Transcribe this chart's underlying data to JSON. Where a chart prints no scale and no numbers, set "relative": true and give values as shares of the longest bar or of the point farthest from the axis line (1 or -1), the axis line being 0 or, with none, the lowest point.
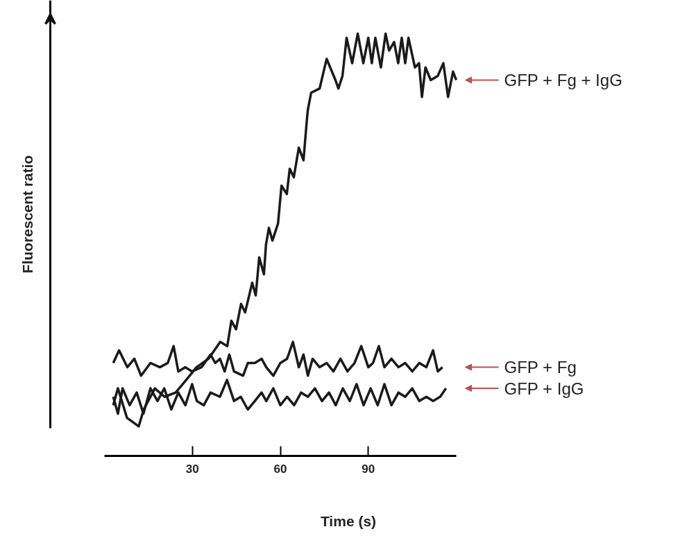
{
  "chart_data": {
    "type": "line",
    "relative": true,
    "xlabel": "Time (s)",
    "ylabel": "Fluorescent ratio",
    "xlim": [
      0,
      120
    ],
    "xticks": [
      30,
      60,
      90
    ],
    "grid": false,
    "marker": "none",
    "line_style": "solid",
    "tick_labels": "x",
    "series": [
      {
        "name": "GFP + Fg + IgG",
        "color": "#1a1a1a",
        "x": [
          3.0,
          4.6,
          7.7,
          11.7,
          13.4,
          17.2,
          20.5,
          24.3,
          27.9,
          31.4,
          35.5,
          39.5,
          41.9,
          43.3,
          44.9,
          46.6,
          48.0,
          50.4,
          51.6,
          52.8,
          54.4,
          55.1,
          56.1,
          57.3,
          59.2,
          60.4,
          62.2,
          63.2,
          64.6,
          66.3,
          67.9,
          69.1,
          69.4,
          70.5,
          73.4,
          75.1,
          75.8,
          77.0,
          78.8,
          79.8,
          81.2,
          82.6,
          84.5,
          86.4,
          88.3,
          90.0,
          91.2,
          92.4,
          94.3,
          95.9,
          97.1,
          98.8,
          100.2,
          101.4,
          102.6,
          103.7,
          105.9,
          107.3,
          108.3,
          109.5,
          111.3,
          113.7,
          115.6,
          117.2,
          118.9,
          120
        ],
        "values": [
          0.12,
          0.16,
          0.09,
          0.07,
          0.11,
          0.16,
          0.14,
          0.15,
          0.18,
          0.21,
          0.23,
          0.27,
          0.26,
          0.32,
          0.3,
          0.36,
          0.34,
          0.41,
          0.38,
          0.47,
          0.43,
          0.5,
          0.54,
          0.51,
          0.55,
          0.64,
          0.62,
          0.68,
          0.66,
          0.73,
          0.7,
          0.8,
          0.82,
          0.86,
          0.87,
          0.92,
          0.94,
          0.92,
          0.89,
          0.87,
          0.9,
          0.99,
          0.93,
          1.0,
          0.93,
          0.99,
          0.93,
          0.99,
          0.92,
          1.0,
          0.96,
          0.98,
          0.93,
          0.99,
          0.93,
          0.99,
          0.92,
          0.93,
          0.85,
          0.92,
          0.89,
          0.9,
          0.93,
          0.85,
          0.91,
          0.89
        ]
      },
      {
        "name": "GFP + Fg",
        "color": "#1a1a1a",
        "x": [
          3.0,
          5.0,
          7.8,
          10.2,
          12.5,
          15.7,
          18.9,
          21.6,
          23.6,
          25.2,
          27.6,
          29.9,
          33.1,
          36.2,
          37.8,
          39.4,
          41.0,
          42.6,
          44.2,
          47.3,
          48.9,
          51.3,
          53.6,
          55.2,
          57.6,
          60.0,
          62.3,
          64.3,
          66.3,
          67.9,
          69.4,
          71.0,
          73.4,
          75.8,
          78.1,
          80.5,
          82.9,
          85.3,
          87.6,
          90.0,
          91.6,
          93.6,
          95.5,
          97.9,
          100.3,
          102.6,
          105.0,
          107.4,
          109.8,
          112.1,
          113.7,
          115.3
        ],
        "values": [
          0.22,
          0.25,
          0.21,
          0.23,
          0.19,
          0.22,
          0.21,
          0.22,
          0.26,
          0.2,
          0.21,
          0.2,
          0.21,
          0.24,
          0.22,
          0.23,
          0.2,
          0.24,
          0.2,
          0.19,
          0.22,
          0.22,
          0.23,
          0.21,
          0.19,
          0.22,
          0.23,
          0.27,
          0.21,
          0.24,
          0.19,
          0.23,
          0.21,
          0.22,
          0.2,
          0.23,
          0.2,
          0.22,
          0.26,
          0.21,
          0.22,
          0.26,
          0.21,
          0.23,
          0.21,
          0.22,
          0.2,
          0.22,
          0.21,
          0.25,
          0.2,
          0.21
        ]
      },
      {
        "name": "GFP + IgG",
        "color": "#1a1a1a",
        "x": [
          3.0,
          4.6,
          6.2,
          8.6,
          11.0,
          13.3,
          15.7,
          18.1,
          20.4,
          22.8,
          25.2,
          27.6,
          29.9,
          31.5,
          33.9,
          36.2,
          39.4,
          41.8,
          44.2,
          46.5,
          48.9,
          51.3,
          53.6,
          55.2,
          57.6,
          60.0,
          62.3,
          64.7,
          67.1,
          69.4,
          71.8,
          74.2,
          76.6,
          78.9,
          81.3,
          83.7,
          86.0,
          88.4,
          90.8,
          93.2,
          95.5,
          97.9,
          100.3,
          102.6,
          105.0,
          107.4,
          109.8,
          112.1,
          114.5,
          116.5
        ],
        "values": [
          0.14,
          0.1,
          0.16,
          0.12,
          0.15,
          0.1,
          0.16,
          0.13,
          0.16,
          0.11,
          0.15,
          0.12,
          0.17,
          0.13,
          0.12,
          0.15,
          0.14,
          0.18,
          0.13,
          0.14,
          0.11,
          0.13,
          0.15,
          0.13,
          0.16,
          0.12,
          0.14,
          0.12,
          0.15,
          0.14,
          0.16,
          0.13,
          0.15,
          0.12,
          0.16,
          0.13,
          0.17,
          0.12,
          0.16,
          0.12,
          0.17,
          0.12,
          0.15,
          0.14,
          0.16,
          0.13,
          0.14,
          0.13,
          0.14,
          0.16
        ]
      }
    ]
  }
}
